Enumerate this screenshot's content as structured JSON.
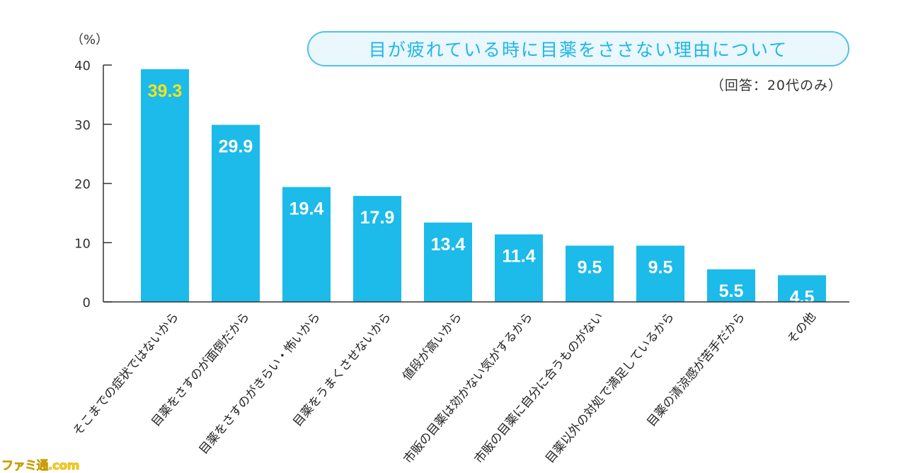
{
  "title": "目が疲れている時に目薬をささない理由について",
  "subtitle": "（回答：20代のみ）",
  "unit": "（%）",
  "watermark": "ファミ通.com",
  "colors": {
    "bar": "#1cbbea",
    "label_default": "#ffffff",
    "label_top": "#f2e31c",
    "axis": "#333333",
    "title": "#20b6e8"
  },
  "chart_data": {
    "type": "bar",
    "title": "目が疲れている時に目薬をささない理由について",
    "subtitle": "（回答：20代のみ）",
    "xlabel": "",
    "ylabel": "（%）",
    "ylim": [
      0,
      40
    ],
    "yticks": [
      "0",
      "10",
      "20",
      "30",
      "40"
    ],
    "grid": false,
    "categories": [
      "そこまでの症状ではないから",
      "目薬をさすのが面倒だから",
      "目薬をさすのがきらい・怖いから",
      "目薬をうまくさせないから",
      "値段が高いから",
      "市販の目薬は効かない気がするから",
      "市販の目薬に自分に合うものがない",
      "目薬以外の対処で満足しているから",
      "目薬の清涼感が苦手だから",
      "その他"
    ],
    "values": [
      39.3,
      29.9,
      19.4,
      17.9,
      13.4,
      11.4,
      9.5,
      9.5,
      5.5,
      4.5
    ],
    "value_labels": [
      "39.3",
      "29.9",
      "19.4",
      "17.9",
      "13.4",
      "11.4",
      "9.5",
      "9.5",
      "5.5",
      "4.5"
    ]
  }
}
